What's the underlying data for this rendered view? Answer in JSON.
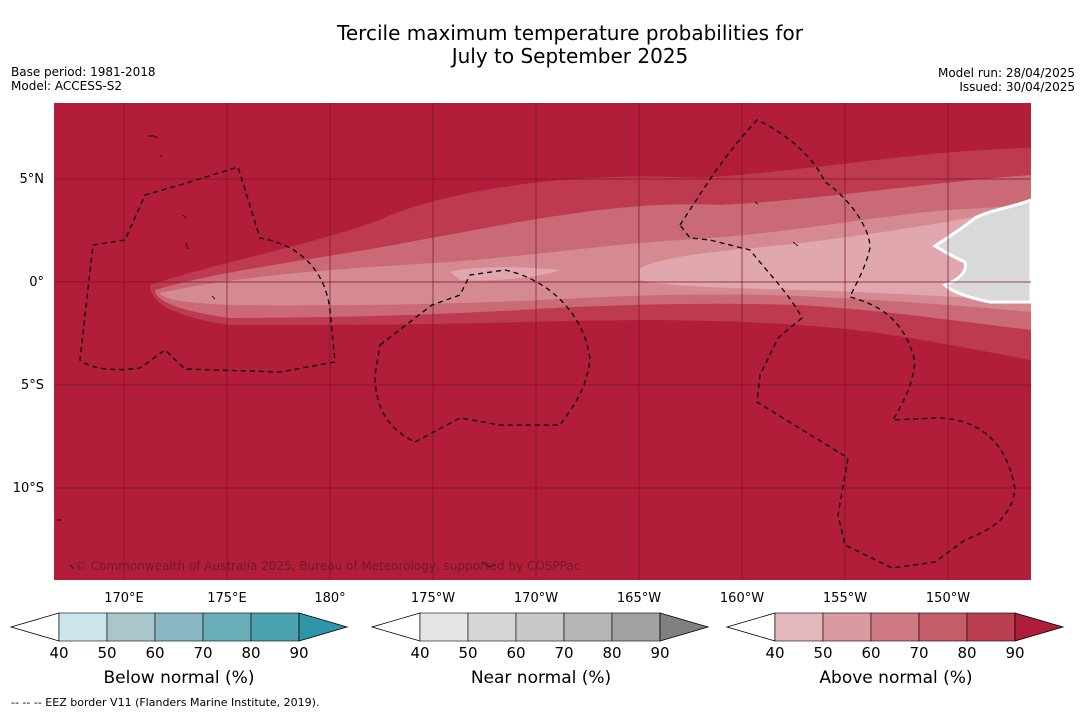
{
  "title_line1": "Tercile maximum temperature probabilities for",
  "title_line2": "July to September 2025",
  "meta_left": {
    "base_period": "Base period: 1981-2018",
    "model": "Model: ACCESS-S2"
  },
  "meta_right": {
    "model_run": "Model run: 28/04/2025",
    "issued": "Issued: 30/04/2025"
  },
  "latitude_labels": [
    "5°N",
    "0°",
    "5°S",
    "10°S"
  ],
  "longitude_labels": [
    "170°E",
    "175°E",
    "180°",
    "175°W",
    "170°W",
    "165°W",
    "160°W",
    "155°W",
    "150°W"
  ],
  "copyright": "© Commonwealth of Australia 2025, Bureau of Meteorology, supported by COSPPac",
  "colors": {
    "above_dominant": "#b21e3a",
    "near_normal_region": "#d9d9d9"
  },
  "colorbars": [
    {
      "name": "below",
      "label": "Below normal (%)",
      "ticks": [
        "40",
        "50",
        "60",
        "70",
        "80",
        "90"
      ],
      "colors": [
        "#cce4ea",
        "#a9c6cd",
        "#8ab7c3",
        "#6aaeba",
        "#4ba2b1",
        "#2f95a8"
      ]
    },
    {
      "name": "near",
      "label": "Near normal (%)",
      "ticks": [
        "40",
        "50",
        "60",
        "70",
        "80",
        "90"
      ],
      "colors": [
        "#e5e5e5",
        "#d6d6d6",
        "#c8c8c8",
        "#b5b5b5",
        "#a2a2a2",
        "#808080"
      ]
    },
    {
      "name": "above",
      "label": "Above normal (%)",
      "ticks": [
        "40",
        "50",
        "60",
        "70",
        "80",
        "90"
      ],
      "colors": [
        "#e3b8bc",
        "#d99aa0",
        "#cf7a83",
        "#c45c69",
        "#bb3e51",
        "#b01d3a"
      ]
    }
  ],
  "footnote": "--  --  -- EEZ border V11 (Flanders Marine Institute, 2019)."
}
